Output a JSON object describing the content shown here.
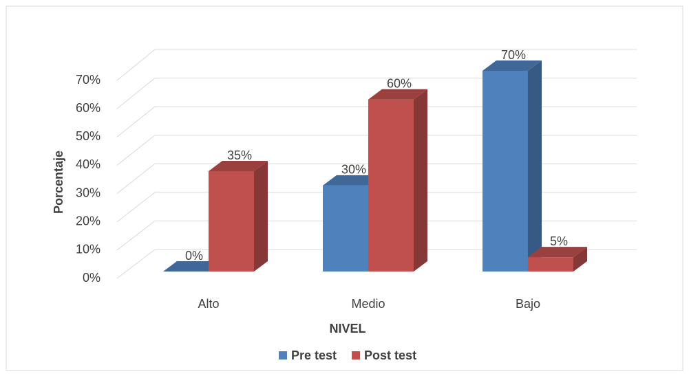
{
  "chart_data": {
    "type": "bar3d",
    "categories": [
      "Alto",
      "Medio",
      "Bajo"
    ],
    "series": [
      {
        "name": "Pre test",
        "color": "#4f81bd",
        "values": [
          0,
          30,
          70
        ],
        "value_labels": [
          "0%",
          "30%",
          "70%"
        ]
      },
      {
        "name": "Post test",
        "color": "#c0504d",
        "values": [
          35,
          60,
          5
        ],
        "value_labels": [
          "35%",
          "60%",
          "5%"
        ]
      }
    ],
    "ylim": [
      0,
      70
    ],
    "yticks": [
      {
        "value": 0,
        "label": "0%"
      },
      {
        "value": 10,
        "label": "10%"
      },
      {
        "value": 20,
        "label": "20%"
      },
      {
        "value": 30,
        "label": "30%"
      },
      {
        "value": 40,
        "label": "40%"
      },
      {
        "value": 50,
        "label": "50%"
      },
      {
        "value": 60,
        "label": "60%"
      },
      {
        "value": 70,
        "label": "70%"
      }
    ],
    "y_label": "Porcentaje",
    "x_label": "NIVEL",
    "grid": true,
    "legend": "bottom"
  }
}
